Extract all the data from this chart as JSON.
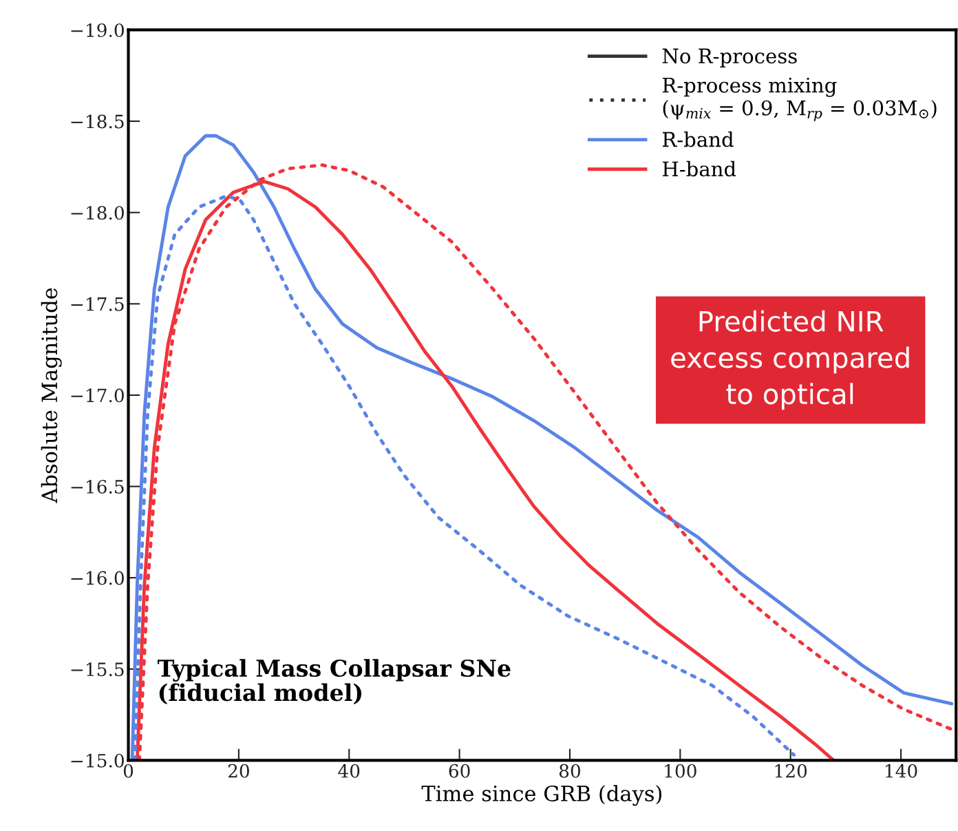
{
  "chart_data": {
    "type": "line",
    "xlabel": "Time since GRB (days)",
    "ylabel": "Absolute Magnitude",
    "xlim": [
      0,
      150
    ],
    "xticks": [
      0,
      20,
      40,
      60,
      80,
      100,
      120,
      140
    ],
    "ylim": [
      -15.0,
      -19.0
    ],
    "yticks": [
      {
        "value": -19.0,
        "label": "−19.0"
      },
      {
        "value": -18.5,
        "label": "−18.5"
      },
      {
        "value": -18.0,
        "label": "−18.0"
      },
      {
        "value": -17.5,
        "label": "−17.5"
      },
      {
        "value": -17.0,
        "label": "−17.0"
      },
      {
        "value": -16.5,
        "label": "−16.5"
      },
      {
        "value": -16.0,
        "label": "−16.0"
      },
      {
        "value": -15.5,
        "label": "−15.5"
      },
      {
        "value": -15.0,
        "label": "−15.0"
      }
    ],
    "grid": false,
    "legend": "top right",
    "series": [
      {
        "name": "R-band",
        "color": "#5b84e6",
        "line_style": "solid",
        "x": [
          0.7,
          1.6,
          2.9,
          4.7,
          7.2,
          10.3,
          14.0,
          15.9,
          19.0,
          22.7,
          26.4,
          30.1,
          33.9,
          38.8,
          45.0,
          51.2,
          58.6,
          66.1,
          73.5,
          81.0,
          88.4,
          95.8,
          103.3,
          110.7,
          118.2,
          125.6,
          133.0,
          140.5,
          149.2
        ],
        "values": [
          -15.0,
          -15.96,
          -16.9,
          -17.58,
          -18.03,
          -18.31,
          -18.42,
          -18.42,
          -18.37,
          -18.22,
          -18.03,
          -17.8,
          -17.58,
          -17.39,
          -17.26,
          -17.18,
          -17.09,
          -16.99,
          -16.86,
          -16.71,
          -16.54,
          -16.37,
          -16.22,
          -16.03,
          -15.86,
          -15.69,
          -15.52,
          -15.37,
          -15.31
        ]
      },
      {
        "name": "H-band",
        "color": "#f0343c",
        "line_style": "solid",
        "x": [
          1.6,
          2.9,
          4.7,
          7.2,
          10.3,
          14.0,
          19.0,
          24.6,
          28.9,
          33.9,
          38.8,
          43.8,
          48.7,
          53.7,
          58.6,
          63.6,
          68.6,
          73.5,
          78.5,
          83.4,
          88.4,
          95.8,
          103.3,
          110.7,
          118.2,
          124.4,
          127.8
        ],
        "values": [
          -15.0,
          -15.96,
          -16.71,
          -17.28,
          -17.69,
          -17.96,
          -18.11,
          -18.17,
          -18.13,
          -18.03,
          -17.88,
          -17.69,
          -17.47,
          -17.24,
          -17.05,
          -16.82,
          -16.6,
          -16.39,
          -16.22,
          -16.07,
          -15.94,
          -15.75,
          -15.58,
          -15.41,
          -15.24,
          -15.09,
          -15.0
        ]
      },
      {
        "color": "#5b84e6",
        "line_style": "dotted",
        "x": [
          1.2,
          2.2,
          3.5,
          5.3,
          8.4,
          12.8,
          17.7,
          20.2,
          22.7,
          26.4,
          30.1,
          35.1,
          40.0,
          45.0,
          50.0,
          56.2,
          63.6,
          71.0,
          79.7,
          88.4,
          95.8,
          105.8,
          113.2,
          120.6
        ],
        "values": [
          -15.0,
          -15.96,
          -16.9,
          -17.54,
          -17.88,
          -18.03,
          -18.09,
          -18.07,
          -17.96,
          -17.73,
          -17.5,
          -17.28,
          -17.05,
          -16.79,
          -16.56,
          -16.33,
          -16.15,
          -15.96,
          -15.79,
          -15.67,
          -15.56,
          -15.41,
          -15.24,
          -15.03
        ]
      },
      {
        "color": "#f0343c",
        "line_style": "dotted",
        "x": [
          2.0,
          3.5,
          5.3,
          8.4,
          12.8,
          17.7,
          23.9,
          28.9,
          35.1,
          40.0,
          46.2,
          52.4,
          58.6,
          66.1,
          73.5,
          81.0,
          88.4,
          95.8,
          103.3,
          110.7,
          118.2,
          125.6,
          133.0,
          140.5,
          149.2
        ],
        "values": [
          -15.0,
          -15.96,
          -16.71,
          -17.39,
          -17.8,
          -18.03,
          -18.18,
          -18.24,
          -18.26,
          -18.23,
          -18.14,
          -17.99,
          -17.84,
          -17.58,
          -17.31,
          -17.01,
          -16.71,
          -16.41,
          -16.15,
          -15.92,
          -15.73,
          -15.56,
          -15.41,
          -15.28,
          -15.17
        ]
      }
    ],
    "annotations": [
      "No R-process",
      "R-process mixing\n(ψ$_{mix}$ = 0.9, M$_{rp}$ = 0.03M$_{⊙}$)",
      "Typical Mass Collapsar SNe\n(fiducial model)",
      "Predicted NIR\nexcess compared\nto optical"
    ]
  }
}
